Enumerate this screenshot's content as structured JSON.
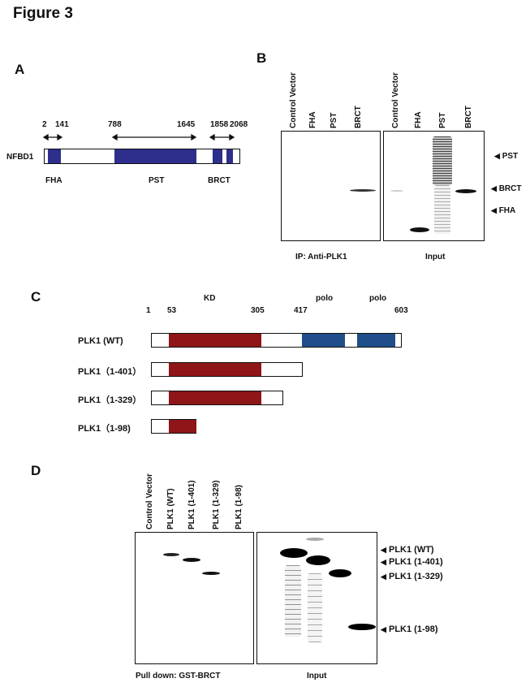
{
  "figure_title": "Figure 3",
  "panels": {
    "A": {
      "letter": "A",
      "protein": "NFBD1",
      "positions": [
        "2",
        "141",
        "788",
        "1645",
        "1858",
        "2068"
      ],
      "domains": [
        "FHA",
        "PST",
        "BRCT"
      ]
    },
    "B": {
      "letter": "B",
      "lanes_ip": [
        "Control Vector",
        "FHA",
        "PST",
        "BRCT"
      ],
      "lanes_input": [
        "Control Vector",
        "FHA",
        "PST",
        "BRCT"
      ],
      "ip_caption": "IP: Anti-PLK1",
      "input_caption": "Input",
      "markers": [
        "PST",
        "BRCT",
        "FHA"
      ]
    },
    "C": {
      "letter": "C",
      "domain_labels": [
        "KD",
        "polo",
        "polo"
      ],
      "positions": [
        "1",
        "53",
        "305",
        "417",
        "603"
      ],
      "constructs": [
        "PLK1  (WT)",
        "PLK1（1-401）",
        "PLK1（1-329）",
        "PLK1（1-98)"
      ]
    },
    "D": {
      "letter": "D",
      "lanes": [
        "Control Vector",
        "PLK1 (WT)",
        "PLK1 (1-401)",
        "PLK1 (1-329)",
        "PLK1 (1-98)"
      ],
      "pulldown_caption": "Pull down: GST-BRCT",
      "input_caption": "Input",
      "markers": [
        "PLK1 (WT)",
        "PLK1 (1-401)",
        "PLK1 (1-329)",
        "PLK1 (1-98)"
      ]
    }
  },
  "colors": {
    "domain_blue": "#2e2e8c",
    "kd_red": "#8e1518",
    "polo_blue": "#1f4e8a"
  }
}
